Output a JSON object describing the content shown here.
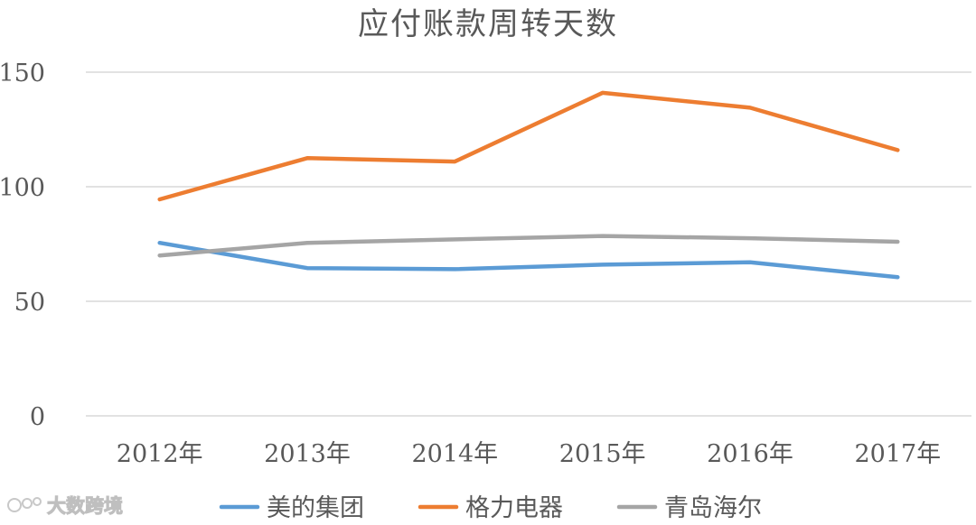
{
  "chart_data": {
    "type": "line",
    "title": "应付账款周转天数",
    "categories": [
      "2012年",
      "2013年",
      "2014年",
      "2015年",
      "2016年",
      "2017年"
    ],
    "yticks": [
      0,
      50,
      100,
      150
    ],
    "ylim": [
      0,
      150
    ],
    "grid": true,
    "legend_position": "bottom",
    "series": [
      {
        "name": "美的集团",
        "color": "#5b9bd5",
        "values": [
          75.5,
          64.5,
          64,
          66,
          67,
          60.5
        ]
      },
      {
        "name": "格力电器",
        "color": "#ed7d31",
        "values": [
          94.5,
          112.5,
          111,
          141,
          134.5,
          116
        ]
      },
      {
        "name": "青岛海尔",
        "color": "#a5a5a5",
        "values": [
          70,
          75.5,
          77,
          78.5,
          77.5,
          76
        ]
      }
    ]
  },
  "watermark": {
    "text": "大数跨境"
  }
}
